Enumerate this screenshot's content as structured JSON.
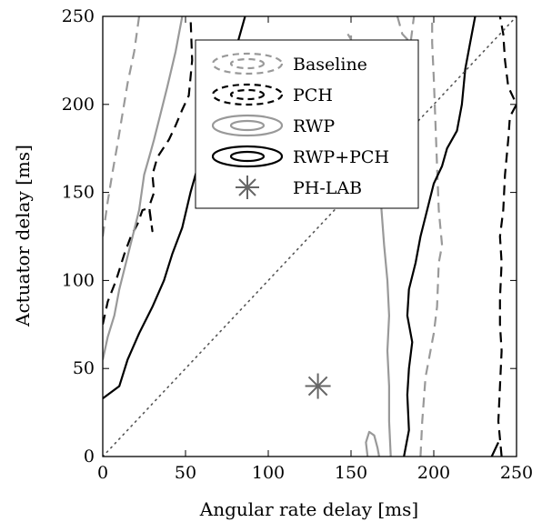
{
  "chart_data": {
    "type": "line",
    "xlabel": "Angular rate delay [ms]",
    "ylabel": "Actuator delay [ms]",
    "xlim": [
      0,
      250
    ],
    "ylim": [
      0,
      250
    ],
    "xticks": [
      0,
      50,
      100,
      150,
      200,
      250
    ],
    "yticks": [
      0,
      50,
      100,
      150,
      200,
      250
    ],
    "grid": false,
    "legend_position": "top-center",
    "colors": {
      "black": "#000000",
      "gray": "#999999"
    },
    "series": [
      {
        "name": "Baseline",
        "style": "dashed",
        "color": "#999999",
        "segments": [
          [
            [
              0,
              125
            ],
            [
              3,
              145
            ],
            [
              6,
              162
            ],
            [
              9,
              178
            ],
            [
              12,
              195
            ],
            [
              15,
              212
            ],
            [
              19,
              230
            ],
            [
              22,
              250
            ]
          ],
          [
            [
              178,
              250
            ],
            [
              181,
              240
            ],
            [
              186,
              235
            ],
            [
              188,
              250
            ]
          ],
          [
            [
              192,
              0
            ],
            [
              193,
              20
            ],
            [
              195,
              45
            ],
            [
              200,
              70
            ],
            [
              202,
              85
            ],
            [
              203,
              110
            ],
            [
              205,
              120
            ],
            [
              203,
              140
            ],
            [
              202,
              165
            ],
            [
              201,
              190
            ],
            [
              200,
              215
            ],
            [
              199,
              235
            ],
            [
              199,
              250
            ]
          ],
          [
            [
              148,
              240
            ],
            [
              150,
              237
            ],
            [
              150,
              242
            ]
          ]
        ]
      },
      {
        "name": "PCH",
        "style": "dashed",
        "color": "#000000",
        "segments": [
          [
            [
              0,
              75
            ],
            [
              3,
              88
            ],
            [
              8,
              100
            ],
            [
              13,
              115
            ],
            [
              17,
              125
            ],
            [
              21,
              132
            ],
            [
              24,
              140
            ],
            [
              28,
              141
            ],
            [
              30,
              128
            ],
            [
              28,
              142
            ],
            [
              31,
              150
            ],
            [
              30,
              160
            ],
            [
              33,
              170
            ],
            [
              40,
              180
            ],
            [
              44,
              188
            ],
            [
              48,
              197
            ],
            [
              52,
              205
            ],
            [
              54,
              225
            ],
            [
              53,
              250
            ]
          ],
          [
            [
              241,
              0
            ],
            [
              239,
              20
            ],
            [
              240,
              40
            ],
            [
              241,
              60
            ],
            [
              240,
              75
            ],
            [
              240,
              90
            ],
            [
              241,
              110
            ],
            [
              240,
              125
            ],
            [
              242,
              140
            ],
            [
              243,
              160
            ],
            [
              245,
              180
            ],
            [
              246,
              193
            ],
            [
              250,
              200
            ],
            [
              245,
              210
            ],
            [
              243,
              225
            ],
            [
              242,
              240
            ],
            [
              240,
              250
            ]
          ]
        ]
      },
      {
        "name": "RWP",
        "style": "solid",
        "color": "#999999",
        "segments": [
          [
            [
              0,
              55
            ],
            [
              3,
              68
            ],
            [
              7,
              80
            ],
            [
              10,
              95
            ],
            [
              14,
              110
            ],
            [
              18,
              125
            ],
            [
              22,
              140
            ],
            [
              25,
              160
            ],
            [
              28,
              170
            ],
            [
              31,
              180
            ],
            [
              35,
              195
            ],
            [
              39,
              210
            ],
            [
              44,
              230
            ],
            [
              48,
              250
            ]
          ],
          [
            [
              174,
              0
            ],
            [
              173,
              20
            ],
            [
              173,
              40
            ],
            [
              172,
              60
            ],
            [
              173,
              80
            ],
            [
              172,
              100
            ],
            [
              170,
              120
            ],
            [
              168,
              145
            ],
            [
              167,
              165
            ],
            [
              166,
              180
            ],
            [
              165,
              195
            ]
          ],
          [
            [
              160,
              0
            ],
            [
              159,
              8
            ],
            [
              161,
              14
            ],
            [
              164,
              12
            ],
            [
              166,
              5
            ],
            [
              167,
              0
            ]
          ]
        ]
      },
      {
        "name": "RWP+PCH",
        "style": "solid",
        "color": "#000000",
        "segments": [
          [
            [
              0,
              33
            ],
            [
              10,
              40
            ],
            [
              15,
              55
            ],
            [
              22,
              70
            ],
            [
              30,
              85
            ],
            [
              37,
              100
            ],
            [
              42,
              115
            ],
            [
              48,
              130
            ],
            [
              53,
              150
            ],
            [
              59,
              170
            ],
            [
              66,
              190
            ],
            [
              73,
              210
            ],
            [
              80,
              230
            ],
            [
              86,
              250
            ]
          ],
          [
            [
              182,
              0
            ],
            [
              185,
              15
            ],
            [
              184,
              35
            ],
            [
              185,
              50
            ],
            [
              187,
              65
            ],
            [
              184,
              80
            ],
            [
              185,
              95
            ],
            [
              189,
              110
            ],
            [
              192,
              125
            ],
            [
              196,
              140
            ],
            [
              200,
              155
            ],
            [
              205,
              165
            ],
            [
              208,
              175
            ],
            [
              214,
              185
            ],
            [
              217,
              200
            ],
            [
              219,
              220
            ],
            [
              222,
              235
            ],
            [
              225,
              250
            ]
          ],
          [
            [
              235,
              0
            ],
            [
              239,
              8
            ]
          ]
        ]
      },
      {
        "name": "",
        "style": "dotted",
        "color": "#555555",
        "segments": [
          [
            [
              0,
              0
            ],
            [
              250,
              250
            ]
          ]
        ]
      }
    ],
    "markers": [
      {
        "name": "PH-LAB",
        "symbol": "asterisk",
        "color": "#666666",
        "x": 130,
        "y": 40
      }
    ]
  }
}
